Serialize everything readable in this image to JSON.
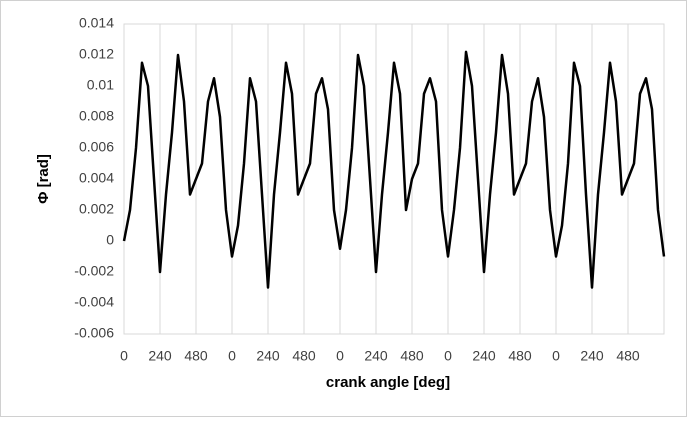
{
  "chart_data": {
    "type": "line",
    "xlabel": "crank angle [deg]",
    "ylabel": "Φ  [rad]",
    "x": [
      0,
      40,
      80,
      120,
      160,
      200,
      240,
      280,
      320,
      360,
      400,
      440,
      480,
      520,
      560,
      600,
      640,
      680,
      720,
      760,
      800,
      840,
      880,
      920,
      960,
      1000,
      1040,
      1080,
      1120,
      1160,
      1200,
      1240,
      1280,
      1320,
      1360,
      1400,
      1440,
      1480,
      1520,
      1560,
      1600,
      1640,
      1680,
      1720,
      1760,
      1800,
      1840,
      1880,
      1920,
      1960,
      2000,
      2040,
      2080,
      2120,
      2160,
      2200,
      2240,
      2280,
      2320,
      2360,
      2400,
      2440,
      2480,
      2520,
      2560,
      2600,
      2640,
      2680,
      2720,
      2760,
      2800,
      2840,
      2880,
      2920,
      2960,
      3000,
      3040,
      3080,
      3120,
      3160,
      3200,
      3240,
      3280,
      3320,
      3360,
      3400,
      3440,
      3480,
      3520,
      3560,
      3600
    ],
    "values": [
      0,
      0.002,
      0.006,
      0.0115,
      0.01,
      0.004,
      -0.002,
      0.003,
      0.007,
      0.012,
      0.009,
      0.003,
      0.004,
      0.005,
      0.009,
      0.0105,
      0.008,
      0.002,
      -0.001,
      0.001,
      0.005,
      0.0105,
      0.009,
      0.003,
      -0.003,
      0.003,
      0.007,
      0.0115,
      0.0095,
      0.003,
      0.004,
      0.005,
      0.0095,
      0.0105,
      0.0085,
      0.002,
      -0.0005,
      0.002,
      0.006,
      0.012,
      0.01,
      0.004,
      -0.002,
      0.003,
      0.007,
      0.0115,
      0.0095,
      0.002,
      0.004,
      0.005,
      0.0095,
      0.0105,
      0.009,
      0.002,
      -0.001,
      0.002,
      0.006,
      0.0122,
      0.01,
      0.004,
      -0.002,
      0.003,
      0.007,
      0.012,
      0.0095,
      0.003,
      0.004,
      0.005,
      0.009,
      0.0105,
      0.008,
      0.002,
      -0.001,
      0.001,
      0.005,
      0.0115,
      0.01,
      0.003,
      -0.003,
      0.003,
      0.007,
      0.0115,
      0.009,
      0.003,
      0.004,
      0.005,
      0.0095,
      0.0105,
      0.0085,
      0.002,
      -0.001
    ],
    "color": "#000000",
    "xlim": [
      0,
      3600
    ],
    "xticks": [
      0,
      240,
      480,
      {
        "value": 720,
        "label": "0"
      },
      {
        "value": 960,
        "label": "240"
      },
      {
        "value": 1200,
        "label": "480"
      },
      {
        "value": 1440,
        "label": "0"
      },
      {
        "value": 1680,
        "label": "240"
      },
      {
        "value": 1920,
        "label": "480"
      },
      {
        "value": 2160,
        "label": "0"
      },
      {
        "value": 2400,
        "label": "240"
      },
      {
        "value": 2640,
        "label": "480"
      },
      {
        "value": 2880,
        "label": "0"
      },
      {
        "value": 3120,
        "label": "240"
      },
      {
        "value": 3360,
        "label": "480"
      }
    ],
    "ylim": [
      -0.006,
      0.014
    ],
    "yticks": [
      -0.006,
      -0.004,
      -0.002,
      0,
      0.002,
      0.004,
      0.006,
      0.008,
      0.01,
      0.012,
      0.014
    ],
    "grid": "x"
  }
}
